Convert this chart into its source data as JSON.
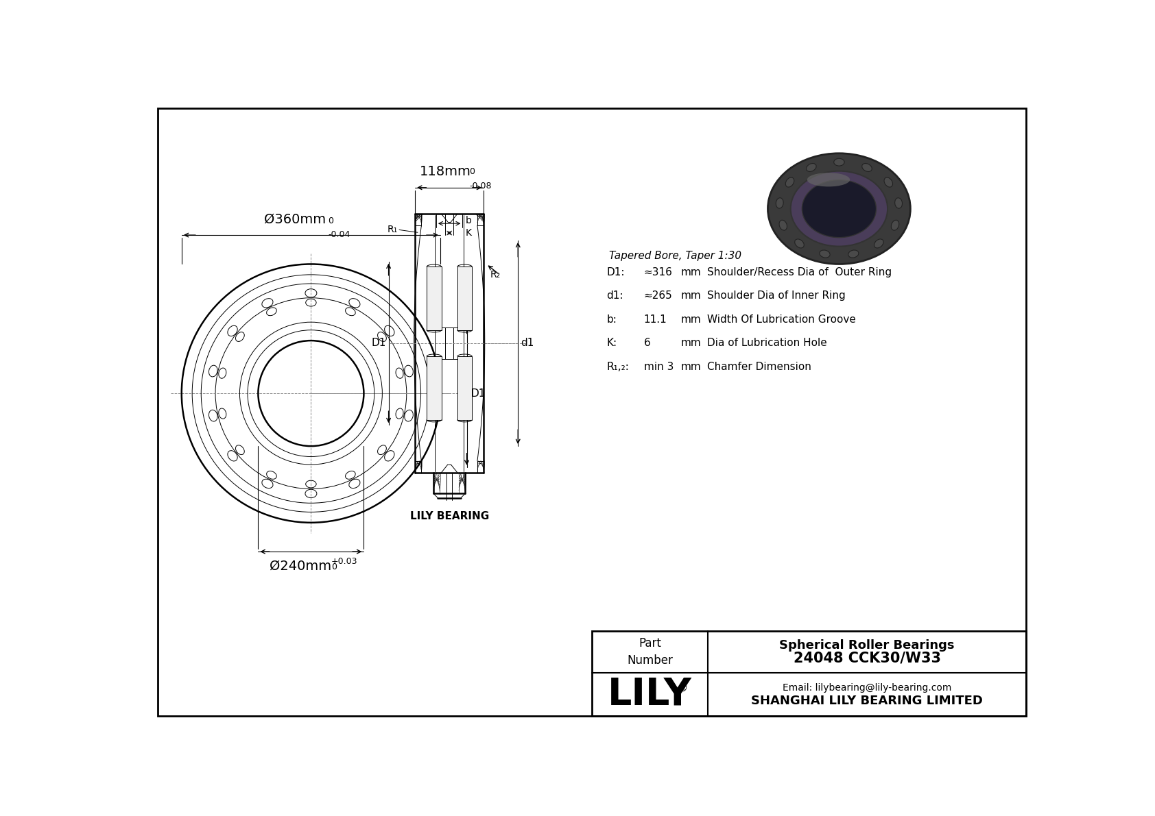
{
  "bg_color": "#ffffff",
  "line_color": "#000000",
  "lily_company": "SHANGHAI LILY BEARING LIMITED",
  "lily_email": "Email: lilybearing@lily-bearing.com",
  "part_number": "24048 CCK30/W33",
  "bearing_type": "Spherical Roller Bearings",
  "taper_note": "Tapered Bore, Taper 1:30",
  "specs": [
    {
      "label": "D1:",
      "value": "≈316",
      "unit": "mm",
      "desc": "Shoulder/Recess Dia of  Outer Ring"
    },
    {
      "label": "d1:",
      "value": "≈265",
      "unit": "mm",
      "desc": "Shoulder Dia of Inner Ring"
    },
    {
      "label": "b:",
      "value": "11.1",
      "unit": "mm",
      "desc": "Width Of Lubrication Groove"
    },
    {
      "label": "K:",
      "value": "6",
      "unit": "mm",
      "desc": "Dia of Lubrication Hole"
    },
    {
      "label": "R₁,₂:",
      "value": "min 3",
      "unit": "mm",
      "desc": "Chamfer Dimension"
    }
  ],
  "outer_dim_label": "Ø360mm",
  "outer_dim_tol_upper": "0",
  "outer_dim_tol_lower": "-0.04",
  "inner_dim_label": "Ø240mm",
  "inner_dim_tol_upper": "+0.03",
  "inner_dim_tol_lower": "0",
  "width_label": "118mm",
  "width_tol_upper": "0",
  "width_tol_lower": "-0.08",
  "dim_D1": "D1",
  "dim_d1": "d1",
  "dim_R1": "R₁",
  "dim_R2": "R₂",
  "dim_b": "b",
  "dim_K": "K",
  "lily_brand": "LILY"
}
